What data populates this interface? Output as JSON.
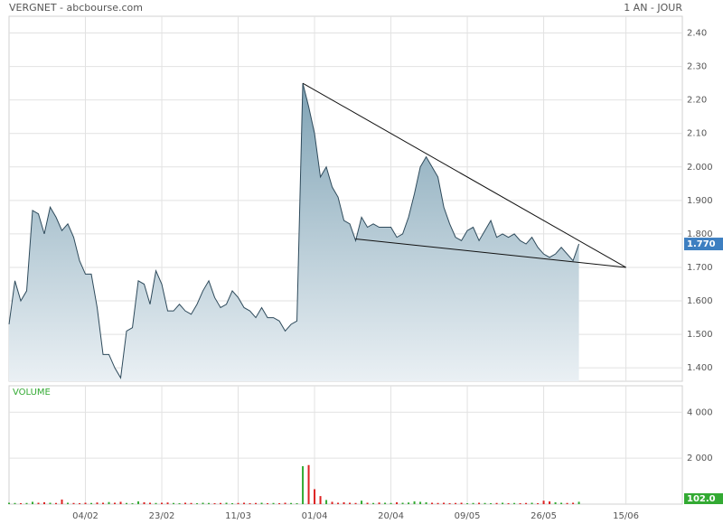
{
  "chart_data": {
    "type": "stock",
    "title": "VERGNET - abcbourse.com",
    "period": "1 AN - JOUR",
    "x": [
      0,
      1,
      2,
      3,
      4,
      5,
      6,
      7,
      8,
      9,
      10,
      11,
      12,
      13,
      14,
      15,
      16,
      17,
      18,
      19,
      20,
      21,
      22,
      23,
      24,
      25,
      26,
      27,
      28,
      29,
      30,
      31,
      32,
      33,
      34,
      35,
      36,
      37,
      38,
      39,
      40,
      41,
      42,
      43,
      44,
      45,
      46,
      47,
      48,
      49,
      50,
      51,
      52,
      53,
      54,
      55,
      56,
      57,
      58,
      59,
      60,
      61,
      62,
      63,
      64,
      65,
      66,
      67,
      68,
      69,
      70,
      71,
      72,
      73,
      74,
      75,
      76,
      77,
      78,
      79,
      80,
      81,
      82,
      83,
      84,
      85,
      86,
      87,
      88,
      89,
      90,
      91,
      92,
      93,
      94,
      95,
      96,
      97
    ],
    "xlim": [
      0,
      114.6
    ],
    "xticks": [
      {
        "value": 13,
        "label": "04/02"
      },
      {
        "value": 26,
        "label": "23/02"
      },
      {
        "value": 39,
        "label": "11/03"
      },
      {
        "value": 52,
        "label": "01/04"
      },
      {
        "value": 65,
        "label": "20/04"
      },
      {
        "value": 78,
        "label": "09/05"
      },
      {
        "value": 91,
        "label": "26/05"
      },
      {
        "value": 105,
        "label": "15/06"
      }
    ],
    "grid": true,
    "price": {
      "values": [
        1.53,
        1.66,
        1.6,
        1.63,
        1.87,
        1.86,
        1.8,
        1.88,
        1.85,
        1.81,
        1.83,
        1.79,
        1.72,
        1.68,
        1.68,
        1.58,
        1.44,
        1.44,
        1.4,
        1.37,
        1.51,
        1.52,
        1.66,
        1.65,
        1.59,
        1.69,
        1.65,
        1.57,
        1.57,
        1.59,
        1.57,
        1.56,
        1.59,
        1.63,
        1.66,
        1.61,
        1.58,
        1.59,
        1.63,
        1.61,
        1.58,
        1.57,
        1.55,
        1.58,
        1.55,
        1.55,
        1.54,
        1.51,
        1.53,
        1.54,
        2.25,
        2.18,
        2.1,
        1.97,
        2.0,
        1.94,
        1.91,
        1.84,
        1.83,
        1.78,
        1.85,
        1.82,
        1.83,
        1.82,
        1.82,
        1.82,
        1.79,
        1.8,
        1.85,
        1.92,
        2.0,
        2.03,
        2.0,
        1.97,
        1.88,
        1.83,
        1.79,
        1.78,
        1.81,
        1.82,
        1.78,
        1.81,
        1.84,
        1.79,
        1.8,
        1.79,
        1.8,
        1.78,
        1.77,
        1.79,
        1.76,
        1.74,
        1.73,
        1.74,
        1.76,
        1.74,
        1.72,
        1.77
      ],
      "ylim": [
        1.36,
        2.45
      ],
      "yticks": [
        {
          "value": 2.4,
          "label": "2.40"
        },
        {
          "value": 2.3,
          "label": "2.30"
        },
        {
          "value": 2.2,
          "label": "2.20"
        },
        {
          "value": 2.1,
          "label": "2.10"
        },
        {
          "value": 2.0,
          "label": "2.000"
        },
        {
          "value": 1.9,
          "label": "1.900"
        },
        {
          "value": 1.8,
          "label": "1.800"
        },
        {
          "value": 1.7,
          "label": "1.700"
        },
        {
          "value": 1.6,
          "label": "1.600"
        },
        {
          "value": 1.5,
          "label": "1.500"
        },
        {
          "value": 1.4,
          "label": "1.400"
        }
      ],
      "color": "#2e4a5b",
      "last_label": "1.770",
      "last_color": "#3d7fc1"
    },
    "volume": {
      "name": "VOLUME",
      "values": [
        60,
        50,
        40,
        50,
        100,
        60,
        80,
        60,
        50,
        200,
        60,
        50,
        40,
        60,
        50,
        70,
        60,
        90,
        60,
        100,
        50,
        40,
        120,
        80,
        60,
        50,
        60,
        70,
        50,
        40,
        60,
        50,
        40,
        60,
        50,
        40,
        50,
        60,
        40,
        50,
        60,
        40,
        50,
        60,
        40,
        50,
        40,
        60,
        50,
        40,
        1650,
        1700,
        650,
        350,
        180,
        100,
        60,
        80,
        60,
        50,
        150,
        60,
        50,
        70,
        60,
        50,
        80,
        60,
        70,
        120,
        100,
        80,
        60,
        50,
        60,
        40,
        50,
        60,
        40,
        50,
        60,
        50,
        40,
        50,
        60,
        40,
        50,
        40,
        50,
        60,
        40,
        150,
        120,
        80,
        60,
        50,
        60,
        102
      ],
      "ylim": [
        0,
        5150
      ],
      "yticks": [
        {
          "value": 4000,
          "label": "4 000"
        },
        {
          "value": 2000,
          "label": "2 000"
        }
      ],
      "up_color": "#33aa33",
      "down_color": "#dd2222",
      "last_label": "102.0"
    },
    "trendlines": [
      {
        "x": [
          50,
          105
        ],
        "y": [
          2.25,
          1.7
        ]
      },
      {
        "x": [
          59,
          105
        ],
        "y": [
          1.785,
          1.7
        ]
      }
    ]
  }
}
